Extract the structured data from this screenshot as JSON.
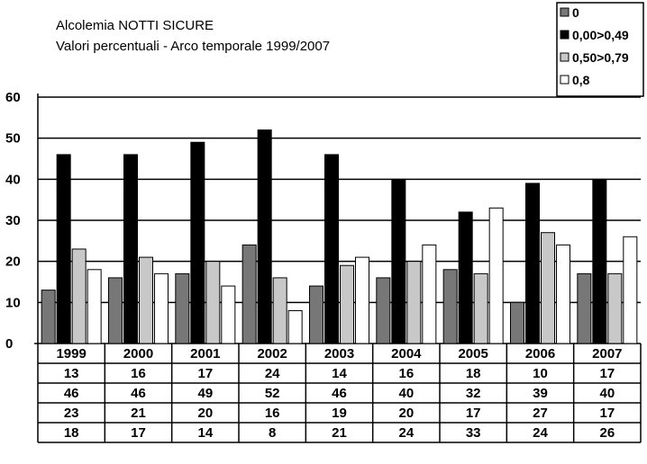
{
  "chart_data": {
    "type": "bar",
    "title": "Alcolemia NOTTI SICURE",
    "subtitle": "Valori percentuali - Arco temporale 1999/2007",
    "categories": [
      "1999",
      "2000",
      "2001",
      "2002",
      "2003",
      "2004",
      "2005",
      "2006",
      "2007"
    ],
    "yticks": [
      "0",
      "10",
      "20",
      "30",
      "40",
      "50",
      "60"
    ],
    "ylim": [
      0,
      60
    ],
    "grid": true,
    "legend_position": "top-right",
    "series": [
      {
        "name": "0",
        "color": "#777777",
        "values": [
          13,
          16,
          17,
          24,
          14,
          16,
          18,
          10,
          17
        ]
      },
      {
        "name": "0,00>0,49",
        "color": "#000000",
        "values": [
          46,
          46,
          49,
          52,
          46,
          40,
          32,
          39,
          40
        ]
      },
      {
        "name": "0,50>0,79",
        "color": "#c8c8c8",
        "values": [
          23,
          21,
          20,
          16,
          19,
          20,
          17,
          27,
          17
        ]
      },
      {
        "name": "0,8",
        "color": "#ffffff",
        "values": [
          18,
          17,
          14,
          8,
          21,
          24,
          33,
          24,
          26
        ]
      }
    ]
  }
}
